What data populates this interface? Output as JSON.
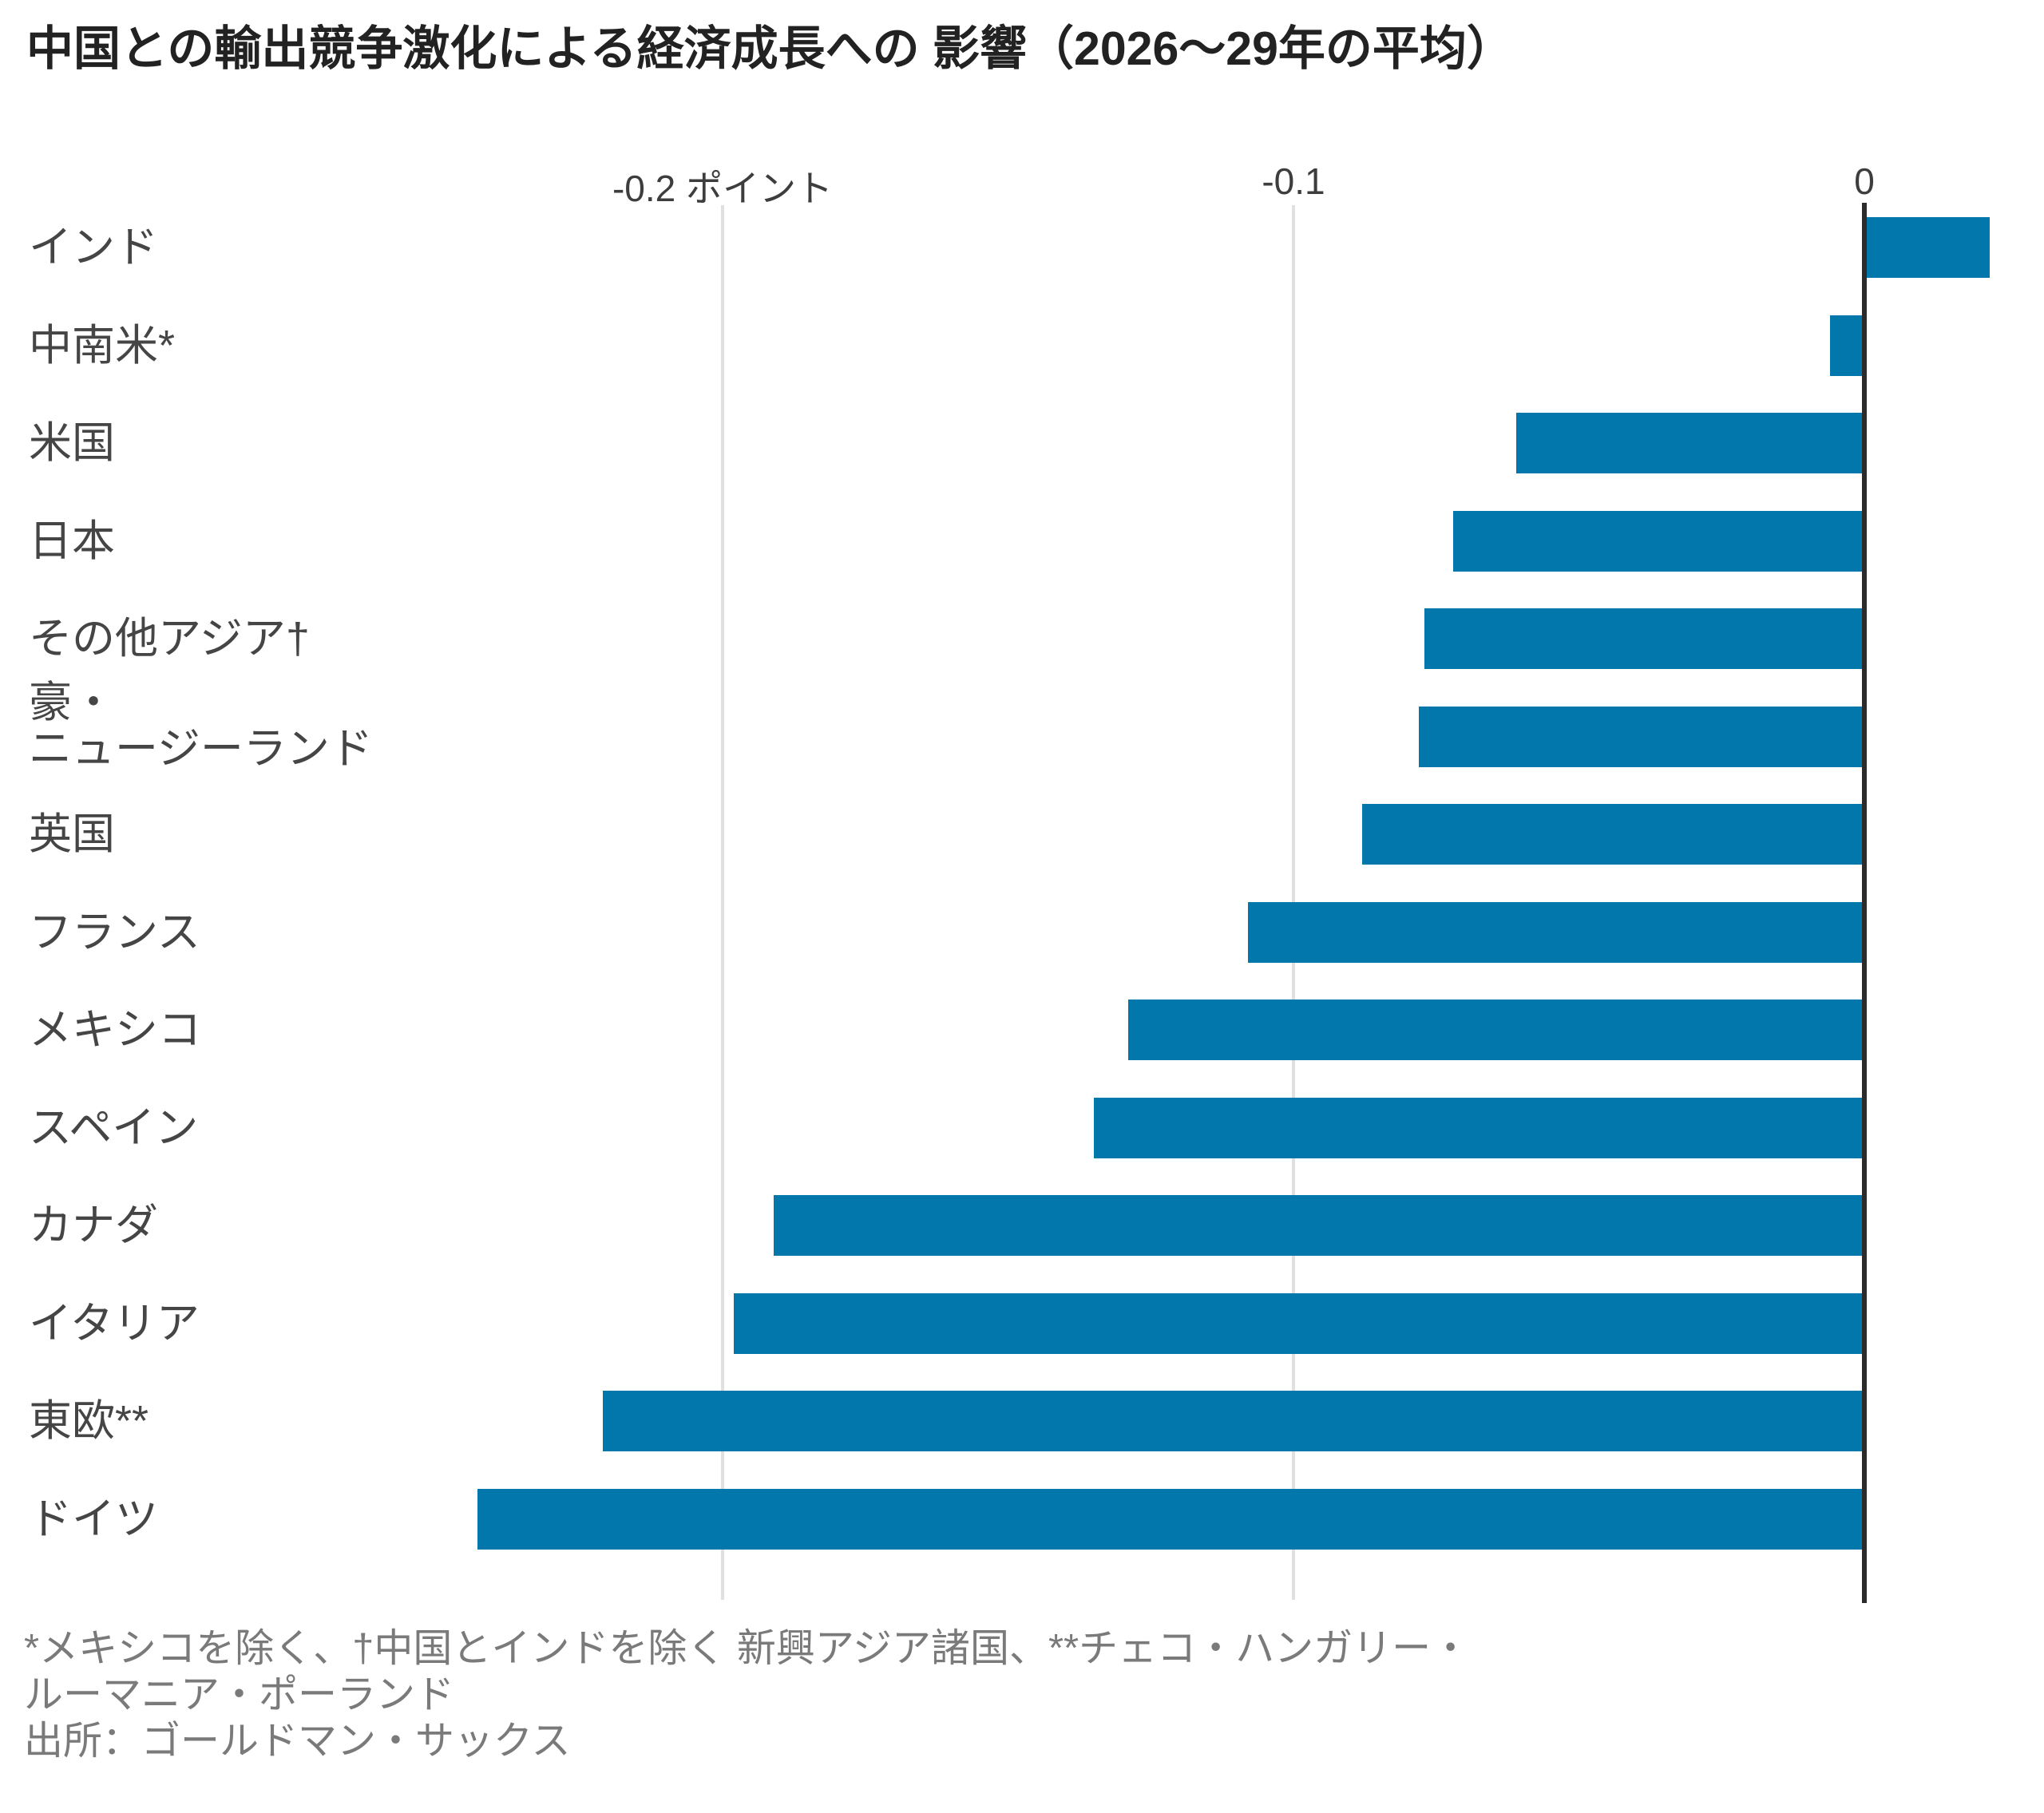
{
  "header": {
    "title": "中国との輸出競争激化による経済成長への 影響（2026〜29年の平均）"
  },
  "chart_data": {
    "type": "bar",
    "orientation": "horizontal",
    "title": "中国との輸出競争激化による経済成長への 影響（2026〜29年の平均）",
    "unit_label": "ポイント",
    "categories": [
      "インド",
      "中南米*",
      "米国",
      "日本",
      "その他アジア†",
      "豪・\nニュージーランド",
      "英国",
      "フランス",
      "メキシコ",
      "スペイン",
      "カナダ",
      "イタリア",
      "東欧**",
      "ドイツ"
    ],
    "values": [
      0.022,
      -0.006,
      -0.061,
      -0.072,
      -0.077,
      -0.078,
      -0.088,
      -0.108,
      -0.129,
      -0.135,
      -0.191,
      -0.198,
      -0.221,
      -0.243
    ],
    "x_ticks": [
      {
        "value": -0.2,
        "label": "-0.2 ポイント"
      },
      {
        "value": -0.1,
        "label": "-0.1"
      },
      {
        "value": 0,
        "label": "0"
      }
    ],
    "xlim": [
      -0.255,
      0.031
    ],
    "grid": true,
    "legend": "none",
    "bar_color": "#0277ac",
    "grid_color": "#e0e0e0",
    "axis_color": "#2b2b2b"
  },
  "footnote": {
    "notes": "*メキシコを除く、†中国とインドを除く 新興アジア諸国、**チェコ・ハンガリー・\nルーマニア・ポーランド",
    "source": "出所：ゴールドマン・サックス"
  }
}
